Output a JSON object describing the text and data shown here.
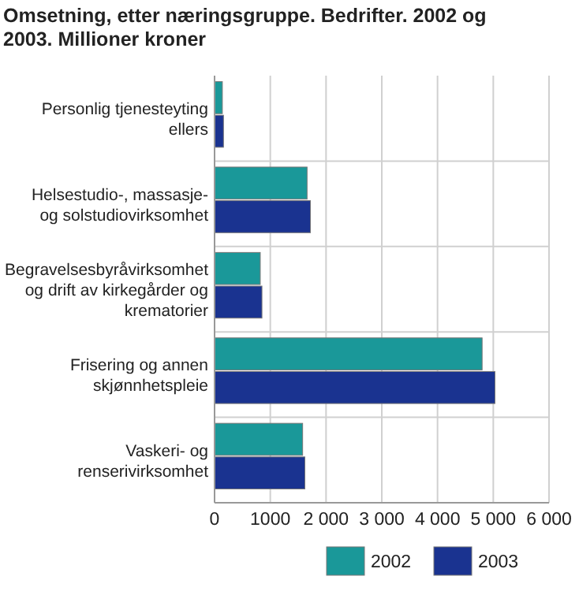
{
  "chart_data": {
    "type": "bar",
    "orientation": "horizontal",
    "title": "Omsetning, etter næringsgruppe. Bedrifter. 2002 og 2003. Millioner kroner",
    "categories": [
      "Personlig tjenesteyting ellers",
      "Helsestudio-, massasje- og solstudiovirksomhet",
      "Begravelsesbyråvirksomhet og drift av kirkegårder og krematorier",
      "Frisering og annen skjønnhetspleie",
      "Vaskeri- og renserivirksomhet"
    ],
    "series": [
      {
        "name": "2002",
        "color": "#1a9899",
        "values": [
          140,
          1660,
          820,
          4800,
          1580
        ]
      },
      {
        "name": "2003",
        "color": "#1a3390",
        "values": [
          160,
          1720,
          850,
          5030,
          1620
        ]
      }
    ],
    "xlim": [
      0,
      6000
    ],
    "xticks": [
      0,
      {
        "value": 1000,
        "label": "1000"
      },
      {
        "value": 2000,
        "label": "2 000"
      },
      {
        "value": 3000,
        "label": "3 000"
      },
      {
        "value": 4000,
        "label": "4 000"
      },
      {
        "value": 5000,
        "label": "5 000"
      },
      {
        "value": 6000,
        "label": "6 000"
      }
    ],
    "grid": true,
    "legend": "bottom right"
  }
}
